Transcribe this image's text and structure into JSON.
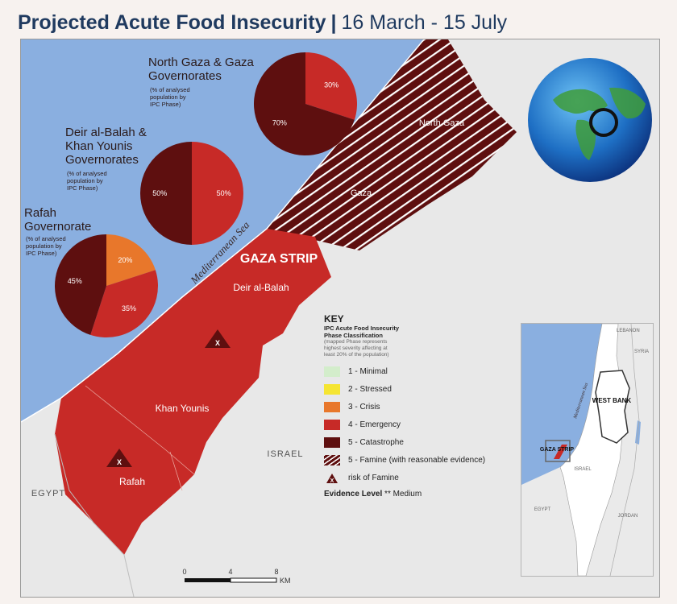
{
  "title": {
    "main": "Projected Acute Food Insecurity",
    "separator": "|",
    "date_range": "16  March - 15 July"
  },
  "map_labels": {
    "north_gaza": "North Gaza",
    "gaza": "Gaza",
    "gaza_strip": "GAZA STRIP",
    "deir_al_balah": "Deir al-Balah",
    "khan_younis": "Khan Younis",
    "rafah": "Rafah",
    "sea": "Mediterranean Sea",
    "israel": "ISRAEL",
    "egypt": "EGYPT",
    "famine_marker": "X"
  },
  "pies": [
    {
      "title": "North Gaza & Gaza Governorates",
      "title_lines": [
        "North Gaza & Gaza",
        "Governorates"
      ],
      "subtitle_lines": [
        "(% of analysed",
        "population by",
        "IPC Phase)"
      ],
      "slices": [
        {
          "label": "30%",
          "value": 30,
          "color": "#c72a27"
        },
        {
          "label": "70%",
          "value": 70,
          "color": "#5e0f0f"
        }
      ]
    },
    {
      "title": "Deir al-Balah & Khan Younis Governorates",
      "title_lines": [
        "Deir al-Balah &",
        "Khan Younis",
        "Governorates"
      ],
      "subtitle_lines": [
        "(% of analysed",
        "population by",
        "IPC Phase)"
      ],
      "slices": [
        {
          "label": "50%",
          "value": 50,
          "color": "#c72a27"
        },
        {
          "label": "50%",
          "value": 50,
          "color": "#5e0f0f"
        }
      ]
    },
    {
      "title": "Rafah Governorate",
      "title_lines": [
        "Rafah",
        "Governorate"
      ],
      "subtitle_lines": [
        "(% of analysed",
        "population by",
        "IPC Phase)"
      ],
      "slices": [
        {
          "label": "20%",
          "value": 20,
          "color": "#e8772b"
        },
        {
          "label": "35%",
          "value": 35,
          "color": "#c72a27"
        },
        {
          "label": "45%",
          "value": 45,
          "color": "#5e0f0f"
        }
      ]
    }
  ],
  "key": {
    "title": "KEY",
    "subtitle_lines": [
      "IPC Acute Food Insecurity",
      "Phase Classification"
    ],
    "note_lines": [
      "(mapped Phase represents",
      "highest severity affecting at",
      "least 20% of the population)"
    ],
    "items": [
      {
        "label": "1 - Minimal",
        "color": "#d3edcb",
        "pattern": "solid"
      },
      {
        "label": "2 - Stressed",
        "color": "#f5e532",
        "pattern": "solid"
      },
      {
        "label": "3 - Crisis",
        "color": "#e8772b",
        "pattern": "solid"
      },
      {
        "label": "4 - Emergency",
        "color": "#c72a27",
        "pattern": "solid"
      },
      {
        "label": "5 - Catastrophe",
        "color": "#5e0f0f",
        "pattern": "solid"
      },
      {
        "label": "5 -  Famine (with reasonable evidence)",
        "color": "#5e0f0f",
        "pattern": "hatched"
      },
      {
        "label": "risk of Famine",
        "color": "#5e0f0f",
        "pattern": "triangle-x"
      }
    ],
    "evidence_label": "Evidence Level",
    "evidence_stars": "**",
    "evidence_value": "Medium"
  },
  "inset": {
    "lebanon": "LEBANON",
    "syria": "SYRIA",
    "sea": "Mediterranean Sea",
    "west_bank": "WEST BANK",
    "gaza_strip": "GAZA STRIP",
    "israel": "ISRAEL",
    "egypt": "EGYPT",
    "jordan": "JORDAN"
  },
  "scale_bar": {
    "ticks": [
      "0",
      "4",
      "8"
    ],
    "unit": "KM"
  },
  "colors": {
    "sea": "#8aafe0",
    "land": "#e8e8e8",
    "emergency": "#c72a27",
    "catastrophe": "#5e0f0f",
    "crisis": "#e8772b",
    "title": "#1f3a5f"
  },
  "icons": [
    "globe-icon",
    "famine-risk-icon"
  ]
}
